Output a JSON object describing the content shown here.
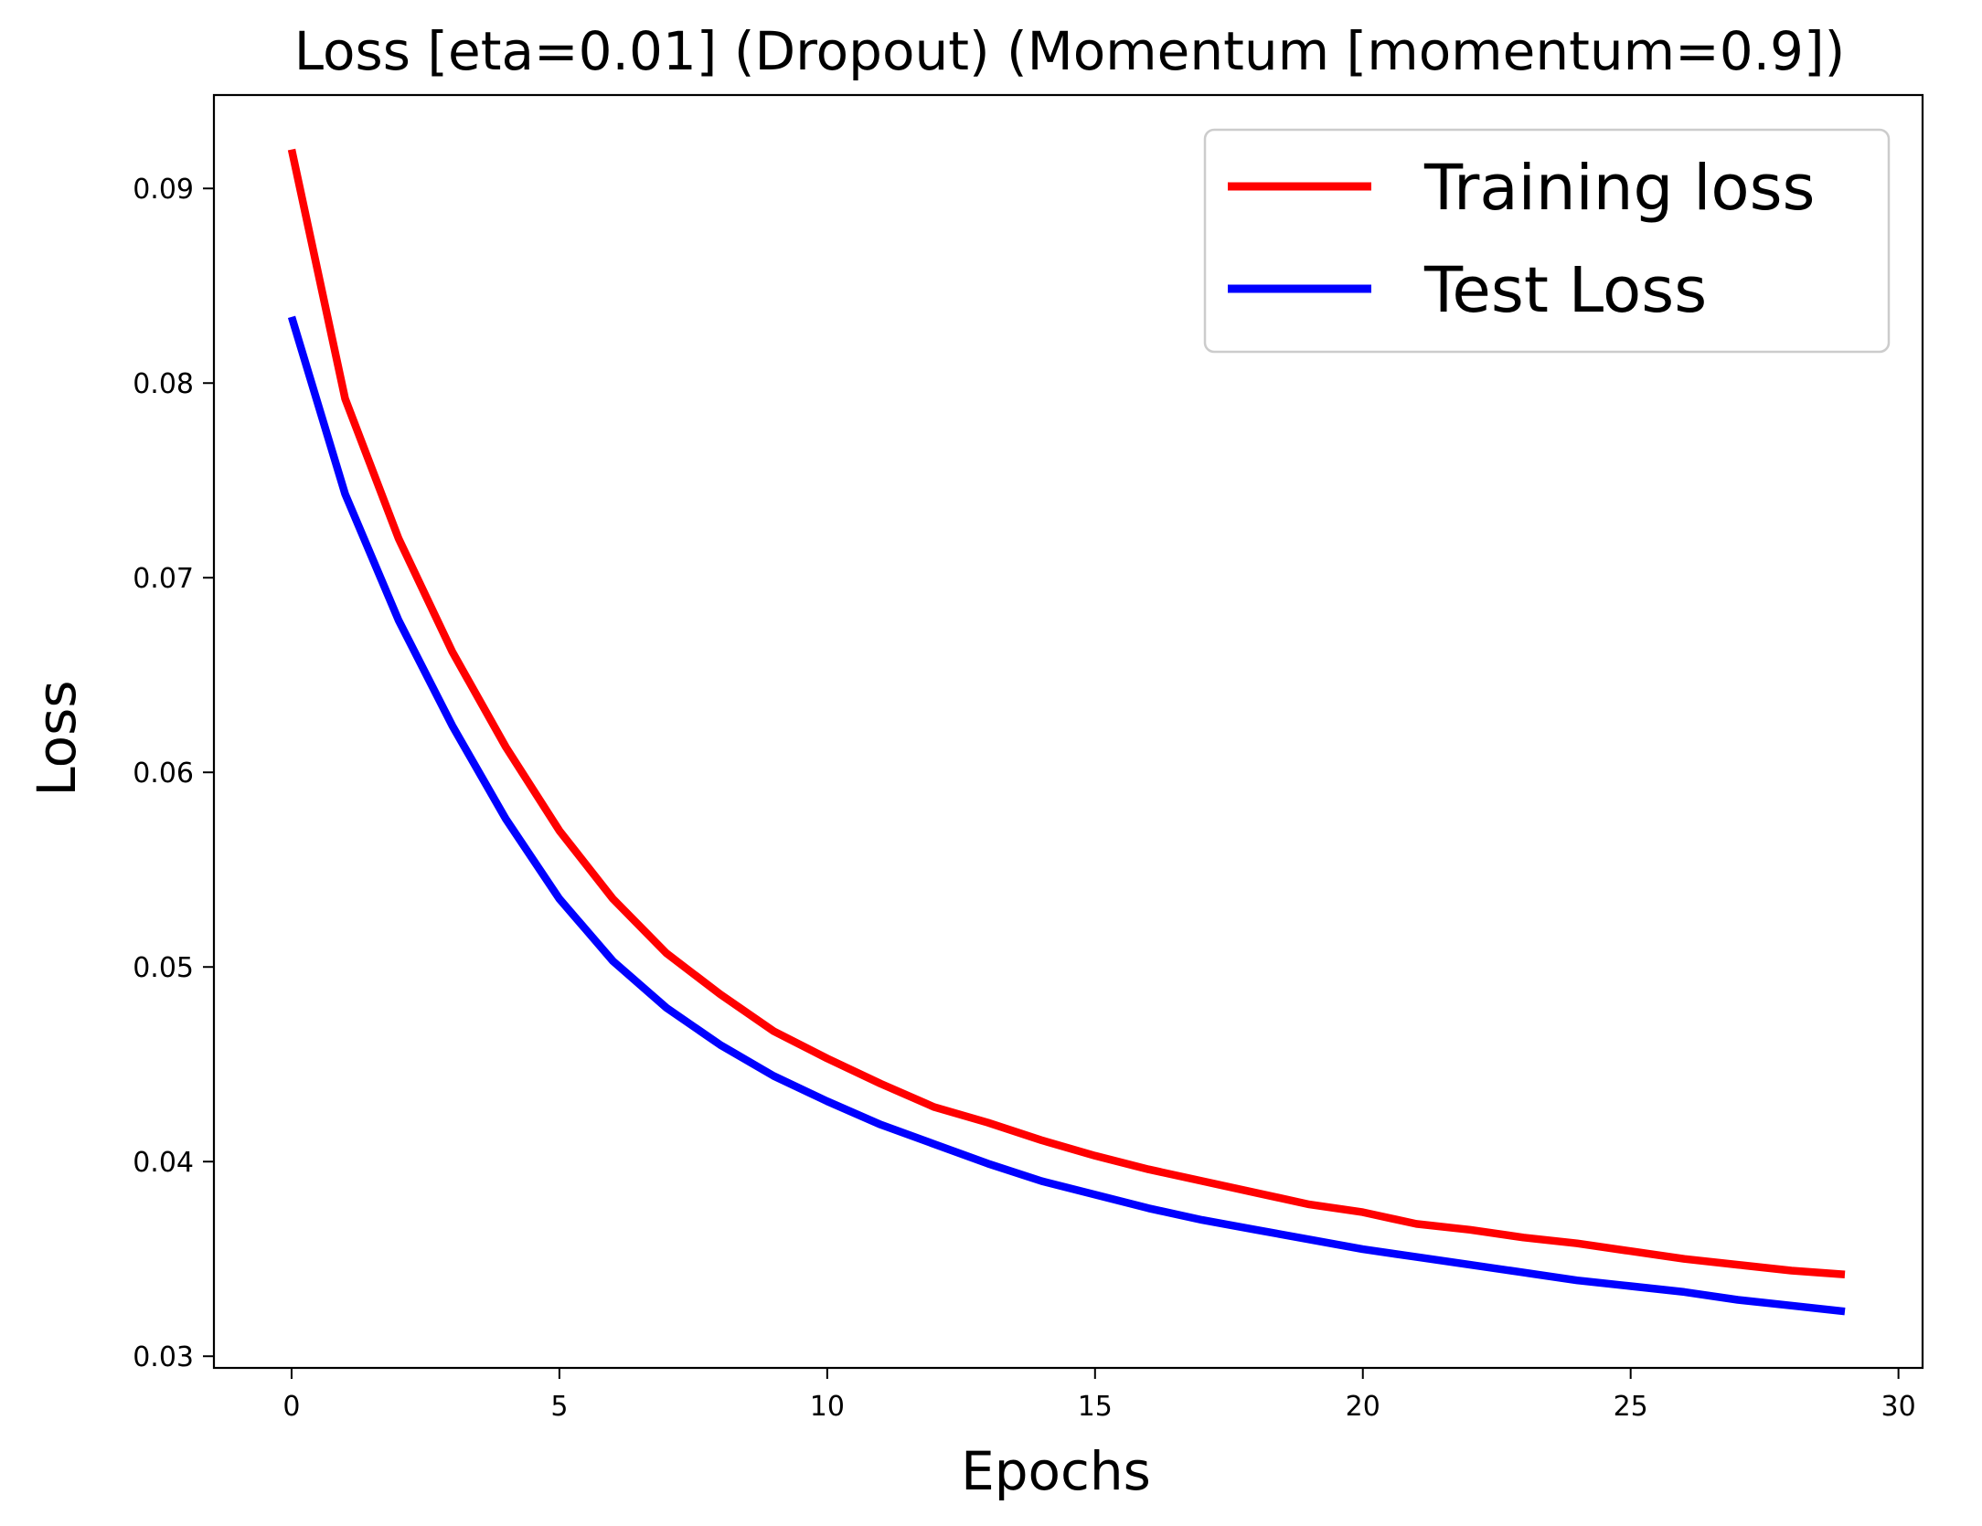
{
  "chart_data": {
    "type": "line",
    "title": "Loss [eta=0.01] (Dropout) (Momentum [momentum=0.9])",
    "xlabel": "Epochs",
    "ylabel": "Loss",
    "xlim": [
      -1.45,
      30.45
    ],
    "ylim": [
      0.0294,
      0.0948
    ],
    "xticks": [
      0,
      5,
      10,
      15,
      20,
      25,
      30
    ],
    "xtick_labels": [
      "0",
      "5",
      "10",
      "15",
      "20",
      "25",
      "30"
    ],
    "yticks": [
      0.03,
      0.04,
      0.05,
      0.06,
      0.07,
      0.08,
      0.09
    ],
    "ytick_labels": [
      "0.03",
      "0.04",
      "0.05",
      "0.06",
      "0.07",
      "0.08",
      "0.09"
    ],
    "grid": false,
    "legend_position": "top-right",
    "x": [
      0,
      1,
      2,
      3,
      4,
      5,
      6,
      7,
      8,
      9,
      10,
      11,
      12,
      13,
      14,
      15,
      16,
      17,
      18,
      19,
      20,
      21,
      22,
      23,
      24,
      25,
      26,
      27,
      28,
      29
    ],
    "series": [
      {
        "name": "Training loss",
        "color": "#ff0000",
        "values": [
          0.092,
          0.0792,
          0.072,
          0.0662,
          0.0613,
          0.057,
          0.0535,
          0.0507,
          0.0486,
          0.0467,
          0.0453,
          0.044,
          0.0428,
          0.042,
          0.0411,
          0.0403,
          0.0396,
          0.039,
          0.0384,
          0.0378,
          0.0374,
          0.0368,
          0.0365,
          0.0361,
          0.0358,
          0.0354,
          0.035,
          0.0347,
          0.0344,
          0.0342
        ]
      },
      {
        "name": "Test Loss",
        "color": "#0000ff",
        "values": [
          0.0834,
          0.0743,
          0.0678,
          0.0624,
          0.0576,
          0.0535,
          0.0503,
          0.0479,
          0.046,
          0.0444,
          0.0431,
          0.0419,
          0.0409,
          0.0399,
          0.039,
          0.0383,
          0.0376,
          0.037,
          0.0365,
          0.036,
          0.0355,
          0.0351,
          0.0347,
          0.0343,
          0.0339,
          0.0336,
          0.0333,
          0.0329,
          0.0326,
          0.0323
        ]
      }
    ]
  }
}
